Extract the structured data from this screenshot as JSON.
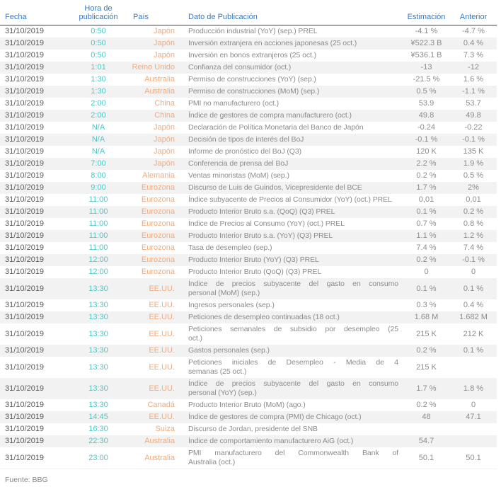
{
  "colors": {
    "header-blue": "#3878BE",
    "time-teal": "#4EC5C6",
    "country-orange": "#F5A978",
    "date-gray": "#58595B",
    "text-gray": "#8A8C8E",
    "stripe": "#F2F2F3",
    "rule-dark": "#404040"
  },
  "table": {
    "columns": {
      "fecha": "Fecha",
      "hora": "Hora de publicación",
      "pais": "País",
      "dato": "Dato de Publicación",
      "estimacion": "Estimación",
      "anterior": "Anterior"
    },
    "rows": [
      {
        "fecha": "31/10/2019",
        "hora": "0:50",
        "pais": "Japón",
        "dato": "Producción industrial (YoY) (sep.) PREL",
        "estimacion": "-4.1 %",
        "anterior": "-4.7 %"
      },
      {
        "fecha": "31/10/2019",
        "hora": "0:50",
        "pais": "Japón",
        "dato": "Inversión extranjera en acciones japonesas (25 oct.)",
        "estimacion": "¥522.3 B",
        "anterior": "0.4 %"
      },
      {
        "fecha": "31/10/2019",
        "hora": "0:50",
        "pais": "Japón",
        "dato": "Inversión en bonos extranjeros (25 oct.)",
        "estimacion": "¥536.1 B",
        "anterior": "7.3 %"
      },
      {
        "fecha": "31/10/2019",
        "hora": "1:01",
        "pais": "Reino Unido",
        "dato": "Confianza del consumidor (oct.)",
        "estimacion": "-13",
        "anterior": "-12"
      },
      {
        "fecha": "31/10/2019",
        "hora": "1:30",
        "pais": "Australia",
        "dato": "Permiso de construcciones (YoY) (sep.)",
        "estimacion": "-21.5 %",
        "anterior": "1.6 %"
      },
      {
        "fecha": "31/10/2019",
        "hora": "1:30",
        "pais": "Australia",
        "dato": "Permiso de construcciones (MoM) (sep.)",
        "estimacion": "0.5 %",
        "anterior": "-1.1 %"
      },
      {
        "fecha": "31/10/2019",
        "hora": "2:00",
        "pais": "China",
        "dato": "PMI no manufacturero (oct.)",
        "estimacion": "53.9",
        "anterior": "53.7"
      },
      {
        "fecha": "31/10/2019",
        "hora": "2:00",
        "pais": "China",
        "dato": "Índice de gestores de compra manufacturero (oct.)",
        "estimacion": "49.8",
        "anterior": "49.8"
      },
      {
        "fecha": "31/10/2019",
        "hora": "N/A",
        "pais": "Japón",
        "dato": "Declaración de Política Monetaria del Banco de Japón",
        "estimacion": "-0.24",
        "anterior": "-0.22"
      },
      {
        "fecha": "31/10/2019",
        "hora": "N/A",
        "pais": "Japón",
        "dato": "Decisión de tipos de interés del BoJ",
        "estimacion": "-0.1 %",
        "anterior": "-0.1 %"
      },
      {
        "fecha": "31/10/2019",
        "hora": "N/A",
        "pais": "Japón",
        "dato": "Informe de pronóstico del BoJ (Q3)",
        "estimacion": "120 K",
        "anterior": "135 K"
      },
      {
        "fecha": "31/10/2019",
        "hora": "7:00",
        "pais": "Japón",
        "dato": "Conferencia de prensa del BoJ",
        "estimacion": "2.2 %",
        "anterior": "1.9 %"
      },
      {
        "fecha": "31/10/2019",
        "hora": "8:00",
        "pais": "Alemania",
        "dato": "Ventas minoristas (MoM) (sep.)",
        "estimacion": "0.2 %",
        "anterior": "0.5 %"
      },
      {
        "fecha": "31/10/2019",
        "hora": "9:00",
        "pais": "Eurozona",
        "dato": "Discurso de Luis de Guindos, Vicepresidente del BCE",
        "estimacion": "1.7 %",
        "anterior": "2%"
      },
      {
        "fecha": "31/10/2019",
        "hora": "11:00",
        "pais": "Eurozona",
        "dato": "Índice subyacente de Precios al Consumidor (YoY) (oct.) PREL",
        "estimacion": "0,01",
        "anterior": "0,01"
      },
      {
        "fecha": "31/10/2019",
        "hora": "11:00",
        "pais": "Eurozona",
        "dato": "Producto Interior Bruto s.a. (QoQ) (Q3) PREL",
        "estimacion": "0.1 %",
        "anterior": "0.2 %"
      },
      {
        "fecha": "31/10/2019",
        "hora": "11:00",
        "pais": "Eurozona",
        "dato": "Índice de Precios al Consumo (YoY) (oct.) PREL",
        "estimacion": "0.7 %",
        "anterior": "0.8 %"
      },
      {
        "fecha": "31/10/2019",
        "hora": "11:00",
        "pais": "Eurozona",
        "dato": "Producto Interior Bruto s.a. (YoY) (Q3) PREL",
        "estimacion": "1.1 %",
        "anterior": "1.2 %"
      },
      {
        "fecha": "31/10/2019",
        "hora": "11:00",
        "pais": "Eurozona",
        "dato": "Tasa de desempleo (sep.)",
        "estimacion": "7.4 %",
        "anterior": "7.4 %"
      },
      {
        "fecha": "31/10/2019",
        "hora": "12:00",
        "pais": "Eurozona",
        "dato": "Producto Interior Bruto (YoY) (Q3) PREL",
        "estimacion": "0.2 %",
        "anterior": "-0.1 %"
      },
      {
        "fecha": "31/10/2019",
        "hora": "12:00",
        "pais": "Eurozona",
        "dato": "Producto Interior Bruto (QoQ) (Q3) PREL",
        "estimacion": "0",
        "anterior": "0"
      },
      {
        "fecha": "31/10/2019",
        "hora": "13:30",
        "pais": "EE.UU.",
        "dato": "Índice de precios subyacente del gasto en consumo personal (MoM) (sep.)",
        "dato_lines": [
          "Índice de precios subyacente del gasto en consumo",
          "personal (MoM) (sep.)"
        ],
        "estimacion": "0.1 %",
        "anterior": "0.1 %"
      },
      {
        "fecha": "31/10/2019",
        "hora": "13:30",
        "pais": "EE.UU.",
        "dato": "Ingresos personales (sep.)",
        "estimacion": "0.3 %",
        "anterior": "0.4 %"
      },
      {
        "fecha": "31/10/2019",
        "hora": "13:30",
        "pais": "EE.UU.",
        "dato": "Peticiones de desempleo continuadas (18 oct.)",
        "estimacion": "1.68 M",
        "anterior": "1.682 M"
      },
      {
        "fecha": "31/10/2019",
        "hora": "13:30",
        "pais": "EE.UU.",
        "dato": "Peticiones semanales de subsidio por desempleo (25 oct.)",
        "dato_lines": [
          "Peticiones semanales de subsidio por desempleo (25",
          "oct.)"
        ],
        "estimacion": "215 K",
        "anterior": "212 K"
      },
      {
        "fecha": "31/10/2019",
        "hora": "13:30",
        "pais": "EE.UU.",
        "dato": "Gastos personales (sep.)",
        "estimacion": "0.2 %",
        "anterior": "0.1 %"
      },
      {
        "fecha": "31/10/2019",
        "hora": "13:30",
        "pais": "EE.UU.",
        "dato": "Peticiones iniciales de Desempleo - Media de 4 semanas (25 oct.)",
        "dato_lines": [
          "Peticiones iniciales de Desempleo - Media de 4",
          "semanas (25 oct.)"
        ],
        "estimacion": "215 K",
        "anterior": ""
      },
      {
        "fecha": "31/10/2019",
        "hora": "13:30",
        "pais": "EE.UU.",
        "dato": "Índice de precios subyacente del gasto en consumo personal (YoY) (sep.)",
        "dato_lines": [
          "Índice de precios subyacente del gasto en consumo",
          "personal (YoY) (sep.)"
        ],
        "estimacion": "1.7 %",
        "anterior": "1.8 %"
      },
      {
        "fecha": "31/10/2019",
        "hora": "13:30",
        "pais": "Canadá",
        "dato": "Producto Interior Bruto (MoM) (ago.)",
        "estimacion": "0.2 %",
        "anterior": "0"
      },
      {
        "fecha": "31/10/2019",
        "hora": "14:45",
        "pais": "EE.UU.",
        "dato": "Índice de gestores de compra (PMI) de Chicago (oct.)",
        "estimacion": "48",
        "anterior": "47.1"
      },
      {
        "fecha": "31/10/2019",
        "hora": "16:30",
        "pais": "Suiza",
        "dato": "Discurso de Jordan, presidente del SNB",
        "estimacion": "",
        "anterior": ""
      },
      {
        "fecha": "31/10/2019",
        "hora": "22:30",
        "pais": "Australia",
        "dato": "Índice de comportamiento manufacturero AiG (oct.)",
        "estimacion": "54.7",
        "anterior": ""
      },
      {
        "fecha": "31/10/2019",
        "hora": "23:00",
        "pais": "Australia",
        "dato": "PMI manufacturero del Commonwealth Bank of Australia (oct.)",
        "dato_lines": [
          "PMI manufacturero del Commonwealth Bank of",
          "Australia (oct.)"
        ],
        "estimacion": "50.1",
        "anterior": "50.1"
      }
    ]
  },
  "footer": {
    "source": "Fuente: BBG"
  }
}
